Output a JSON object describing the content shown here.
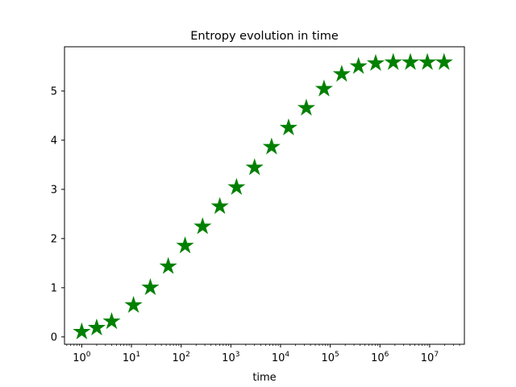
{
  "chart_data": {
    "type": "scatter",
    "title": "Entropy evolution in time",
    "xlabel": "time",
    "ylabel": "",
    "x_scale": "log",
    "xlim": [
      0.45,
      50000000
    ],
    "ylim": [
      -0.15,
      5.9
    ],
    "x_ticks": [
      1,
      10,
      100,
      1000,
      10000,
      100000,
      1000000,
      10000000
    ],
    "x_tick_labels": [
      {
        "base": "10",
        "exp": "0"
      },
      {
        "base": "10",
        "exp": "1"
      },
      {
        "base": "10",
        "exp": "2"
      },
      {
        "base": "10",
        "exp": "3"
      },
      {
        "base": "10",
        "exp": "4"
      },
      {
        "base": "10",
        "exp": "5"
      },
      {
        "base": "10",
        "exp": "6"
      },
      {
        "base": "10",
        "exp": "7"
      }
    ],
    "y_ticks": [
      0,
      1,
      2,
      3,
      4,
      5
    ],
    "y_tick_labels": [
      "0",
      "1",
      "2",
      "3",
      "4",
      "5"
    ],
    "grid": false,
    "legend": "none",
    "series": [
      {
        "marker": "star",
        "color": "#008000",
        "points": [
          {
            "x": 1,
            "y": 0.12
          },
          {
            "x": 2,
            "y": 0.2
          },
          {
            "x": 4,
            "y": 0.33
          },
          {
            "x": 11,
            "y": 0.66
          },
          {
            "x": 24,
            "y": 1.02
          },
          {
            "x": 55,
            "y": 1.45
          },
          {
            "x": 120,
            "y": 1.87
          },
          {
            "x": 270,
            "y": 2.26
          },
          {
            "x": 600,
            "y": 2.67
          },
          {
            "x": 1300,
            "y": 3.06
          },
          {
            "x": 3000,
            "y": 3.46
          },
          {
            "x": 6600,
            "y": 3.88
          },
          {
            "x": 14500,
            "y": 4.27
          },
          {
            "x": 33000,
            "y": 4.67
          },
          {
            "x": 75000,
            "y": 5.06
          },
          {
            "x": 170000,
            "y": 5.36
          },
          {
            "x": 370000,
            "y": 5.52
          },
          {
            "x": 820000,
            "y": 5.58
          },
          {
            "x": 1850000,
            "y": 5.6
          },
          {
            "x": 4100000,
            "y": 5.6
          },
          {
            "x": 9000000,
            "y": 5.6
          },
          {
            "x": 19500000,
            "y": 5.6
          }
        ]
      }
    ]
  }
}
